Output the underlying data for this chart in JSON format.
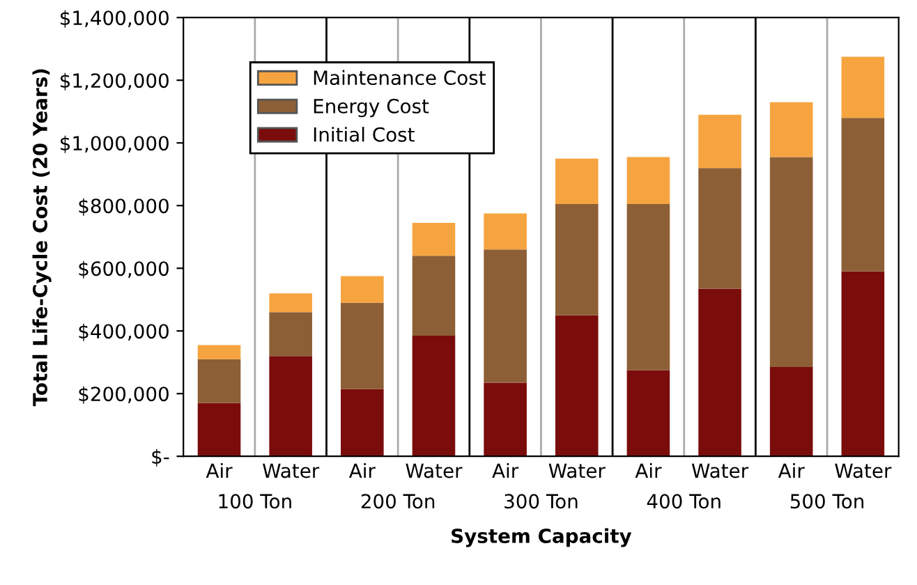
{
  "chart_data": {
    "type": "bar",
    "stacked": true,
    "xlabel": "System Capacity",
    "ylabel": "Total Life-Cycle Cost (20 Years)",
    "categories": [
      "Air",
      "Water",
      "Air",
      "Water",
      "Air",
      "Water",
      "Air",
      "Water",
      "Air",
      "Water"
    ],
    "annotations": [
      "100 Ton",
      "200 Ton",
      "300 Ton",
      "400 Ton",
      "500 Ton"
    ],
    "series": [
      {
        "name": "Initial Cost",
        "color": "#7b0c0c",
        "values": [
          170000,
          320000,
          215000,
          385000,
          235000,
          450000,
          275000,
          535000,
          285000,
          590000
        ]
      },
      {
        "name": "Energy Cost",
        "color": "#8d5f36",
        "values": [
          140000,
          140000,
          275000,
          255000,
          425000,
          355000,
          530000,
          385000,
          670000,
          490000
        ]
      },
      {
        "name": "Maintenance Cost",
        "color": "#f6a440",
        "values": [
          45000,
          60000,
          85000,
          105000,
          115000,
          145000,
          150000,
          170000,
          175000,
          195000
        ]
      }
    ],
    "ylim": [
      0,
      1400000
    ],
    "yticks": [
      {
        "value": 0,
        "label": "$-"
      },
      {
        "value": 200000,
        "label": "$200,000"
      },
      {
        "value": 400000,
        "label": "$400,000"
      },
      {
        "value": 600000,
        "label": "$600,000"
      },
      {
        "value": 800000,
        "label": "$800,000"
      },
      {
        "value": 1000000,
        "label": "$1,000,000"
      },
      {
        "value": 1200000,
        "label": "$1,200,000"
      },
      {
        "value": 1400000,
        "label": "$1,400,000"
      }
    ],
    "legend": "top left",
    "grid": false
  }
}
